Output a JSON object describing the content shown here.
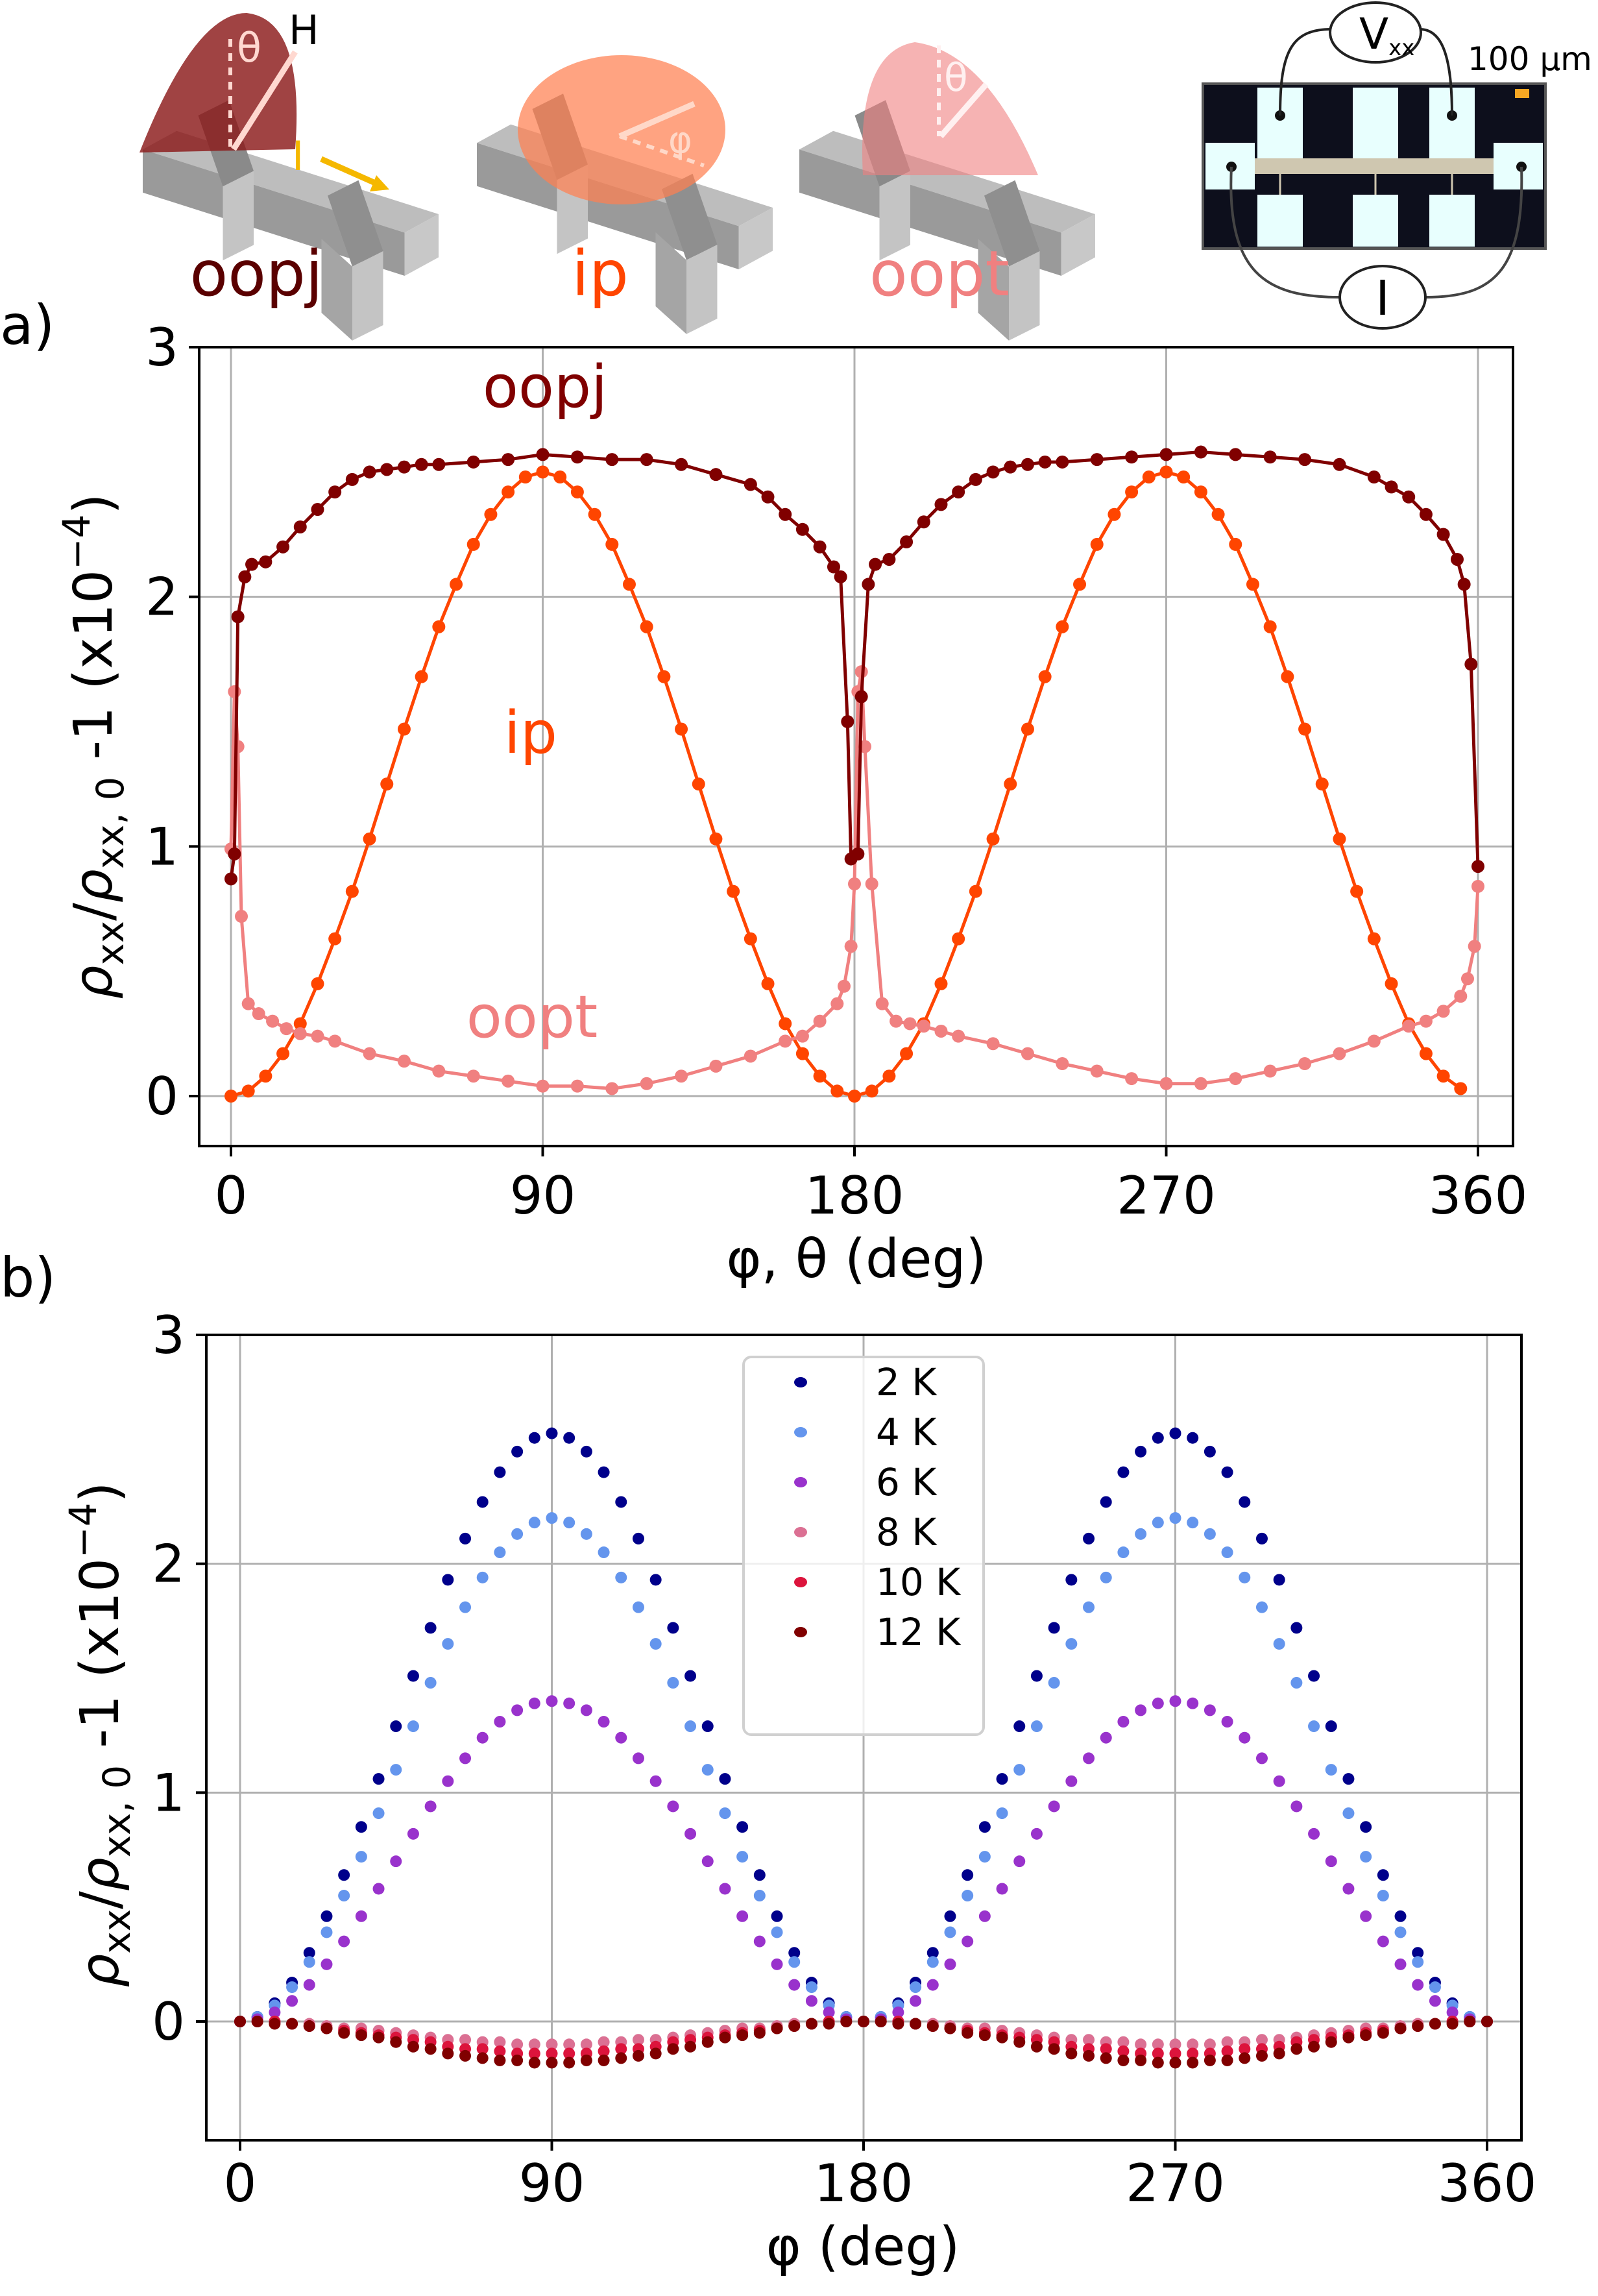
{
  "illustration": {
    "geometry_labels": [
      "oopj",
      "ip",
      "oopt"
    ],
    "geometry_colors": [
      "#5a0000",
      "#ff4500",
      "#f08080"
    ],
    "field_label": "H",
    "theta_label": "θ",
    "phi_label": "φ",
    "current_label": "I",
    "voltmeter_label": "V",
    "voltmeter_sub": "xx",
    "scale_bar": "100 µm",
    "ammeter_label": "I"
  },
  "panel_labels": {
    "a": "a)",
    "b": "b)"
  },
  "ylabel_parts": {
    "rho": "ρ",
    "sub1": "xx",
    "slash": "/",
    "rho2": "ρ",
    "sub2": "xx, 0",
    "tail": " -1 (x10",
    "sup": "−4",
    "close": ")"
  },
  "chart_data": [
    {
      "type": "line",
      "panel": "a",
      "xlabel": "φ, θ (deg)",
      "ylabel": "ρxx/ρxx,0 -1 (x10^-4)",
      "xlim": [
        -8,
        368
      ],
      "ylim": [
        -0.2,
        3
      ],
      "xticks": [
        "0",
        "90",
        "180",
        "270",
        "360"
      ],
      "xtick_values": [
        0,
        90,
        180,
        270,
        360
      ],
      "yticks": [
        "0",
        "1",
        "2",
        "3"
      ],
      "ytick_values": [
        0,
        1,
        2,
        3
      ],
      "grid": true,
      "annotations": [
        "oopj",
        "ip",
        "oopt"
      ],
      "series": [
        {
          "name": "ip",
          "color": "#ff4500",
          "x": [
            0,
            5,
            10,
            15,
            20,
            25,
            30,
            35,
            40,
            45,
            50,
            55,
            60,
            65,
            70,
            75,
            80,
            85,
            90,
            95,
            100,
            105,
            110,
            115,
            120,
            125,
            130,
            135,
            140,
            145,
            150,
            155,
            160,
            165,
            170,
            175,
            180,
            185,
            190,
            195,
            200,
            205,
            210,
            215,
            220,
            225,
            230,
            235,
            240,
            245,
            250,
            255,
            260,
            265,
            270,
            275,
            280,
            285,
            290,
            295,
            300,
            305,
            310,
            315,
            320,
            325,
            330,
            335,
            340,
            345,
            350,
            355
          ],
          "y": [
            0,
            0.02,
            0.08,
            0.17,
            0.29,
            0.45,
            0.63,
            0.82,
            1.03,
            1.25,
            1.47,
            1.68,
            1.88,
            2.05,
            2.21,
            2.33,
            2.42,
            2.48,
            2.5,
            2.48,
            2.42,
            2.33,
            2.21,
            2.05,
            1.88,
            1.68,
            1.47,
            1.25,
            1.03,
            0.82,
            0.63,
            0.45,
            0.29,
            0.17,
            0.08,
            0.02,
            0,
            0.02,
            0.08,
            0.17,
            0.29,
            0.45,
            0.63,
            0.82,
            1.03,
            1.25,
            1.47,
            1.68,
            1.88,
            2.05,
            2.21,
            2.33,
            2.42,
            2.48,
            2.5,
            2.48,
            2.42,
            2.33,
            2.21,
            2.05,
            1.88,
            1.68,
            1.47,
            1.25,
            1.03,
            0.82,
            0.63,
            0.45,
            0.29,
            0.17,
            0.08,
            0.03
          ]
        },
        {
          "name": "oopt",
          "color": "#f08080",
          "x": [
            0,
            1,
            2,
            3,
            5,
            8,
            12,
            16,
            20,
            25,
            30,
            40,
            50,
            60,
            70,
            80,
            90,
            100,
            110,
            120,
            130,
            140,
            150,
            160,
            165,
            170,
            175,
            177,
            179,
            180,
            181,
            182,
            183,
            185,
            188,
            192,
            196,
            200,
            205,
            210,
            220,
            230,
            240,
            250,
            260,
            270,
            280,
            290,
            300,
            310,
            320,
            330,
            340,
            345,
            350,
            355,
            357,
            359,
            360
          ],
          "y": [
            0.99,
            1.62,
            1.4,
            0.72,
            0.37,
            0.33,
            0.3,
            0.27,
            0.25,
            0.24,
            0.22,
            0.17,
            0.14,
            0.1,
            0.08,
            0.06,
            0.04,
            0.04,
            0.03,
            0.05,
            0.08,
            0.12,
            0.16,
            0.22,
            0.24,
            0.3,
            0.37,
            0.44,
            0.6,
            0.85,
            1.62,
            1.7,
            1.4,
            0.85,
            0.37,
            0.3,
            0.29,
            0.28,
            0.26,
            0.24,
            0.21,
            0.17,
            0.13,
            0.1,
            0.07,
            0.05,
            0.05,
            0.07,
            0.1,
            0.13,
            0.17,
            0.22,
            0.28,
            0.3,
            0.34,
            0.4,
            0.47,
            0.6,
            0.84
          ]
        },
        {
          "name": "oopj",
          "color": "#800000",
          "x": [
            0,
            1,
            2,
            4,
            6,
            10,
            15,
            20,
            25,
            30,
            35,
            40,
            45,
            50,
            55,
            60,
            70,
            80,
            90,
            100,
            110,
            120,
            130,
            140,
            150,
            155,
            160,
            165,
            170,
            174,
            176,
            178,
            179,
            181,
            182,
            184,
            186,
            190,
            195,
            200,
            205,
            210,
            215,
            220,
            225,
            230,
            235,
            240,
            250,
            260,
            270,
            280,
            290,
            300,
            310,
            320,
            330,
            335,
            340,
            345,
            350,
            354,
            356,
            358,
            360
          ],
          "y": [
            0.87,
            0.97,
            1.92,
            2.08,
            2.13,
            2.14,
            2.2,
            2.28,
            2.35,
            2.42,
            2.47,
            2.5,
            2.51,
            2.52,
            2.53,
            2.53,
            2.54,
            2.55,
            2.57,
            2.56,
            2.55,
            2.55,
            2.53,
            2.49,
            2.45,
            2.4,
            2.33,
            2.27,
            2.2,
            2.12,
            2.08,
            1.5,
            0.95,
            0.97,
            1.6,
            2.05,
            2.13,
            2.15,
            2.22,
            2.3,
            2.37,
            2.42,
            2.47,
            2.5,
            2.52,
            2.53,
            2.54,
            2.54,
            2.55,
            2.56,
            2.57,
            2.58,
            2.57,
            2.56,
            2.55,
            2.53,
            2.48,
            2.44,
            2.4,
            2.33,
            2.25,
            2.15,
            2.05,
            1.73,
            0.92
          ]
        }
      ]
    },
    {
      "type": "scatter",
      "panel": "b",
      "xlabel": "φ (deg)",
      "ylabel": "ρxx/ρxx,0 -1 (x10^-4)",
      "xlim": [
        -8,
        368
      ],
      "ylim": [
        -0.52,
        3
      ],
      "xticks": [
        "0",
        "90",
        "180",
        "270",
        "360"
      ],
      "xtick_values": [
        0,
        90,
        180,
        270,
        360
      ],
      "yticks": [
        "0",
        "1",
        "2",
        "3"
      ],
      "ytick_values": [
        0,
        1,
        2,
        3
      ],
      "grid": true,
      "legend_position": "top-center",
      "x": [
        0,
        5,
        10,
        15,
        20,
        25,
        30,
        35,
        40,
        45,
        50,
        55,
        60,
        65,
        70,
        75,
        80,
        85,
        90,
        95,
        100,
        105,
        110,
        115,
        120,
        125,
        130,
        135,
        140,
        145,
        150,
        155,
        160,
        165,
        170,
        175,
        180,
        185,
        190,
        195,
        200,
        205,
        210,
        215,
        220,
        225,
        230,
        235,
        240,
        245,
        250,
        255,
        260,
        265,
        270,
        275,
        280,
        285,
        290,
        295,
        300,
        305,
        310,
        315,
        320,
        325,
        330,
        335,
        340,
        345,
        350,
        355,
        360
      ],
      "series": [
        {
          "name": "2 K",
          "color": "#00008b",
          "y": [
            0,
            0.02,
            0.08,
            0.17,
            0.3,
            0.46,
            0.64,
            0.85,
            1.06,
            1.29,
            1.51,
            1.72,
            1.93,
            2.11,
            2.27,
            2.4,
            2.49,
            2.55,
            2.57,
            2.55,
            2.49,
            2.4,
            2.27,
            2.11,
            1.93,
            1.72,
            1.51,
            1.29,
            1.06,
            0.85,
            0.64,
            0.46,
            0.3,
            0.17,
            0.08,
            0.02,
            0,
            0.02,
            0.08,
            0.17,
            0.3,
            0.46,
            0.64,
            0.85,
            1.06,
            1.29,
            1.51,
            1.72,
            1.93,
            2.11,
            2.27,
            2.4,
            2.49,
            2.55,
            2.57,
            2.55,
            2.49,
            2.4,
            2.27,
            2.11,
            1.93,
            1.72,
            1.51,
            1.29,
            1.06,
            0.85,
            0.64,
            0.46,
            0.3,
            0.17,
            0.08,
            0.02,
            0
          ]
        },
        {
          "name": "4 K",
          "color": "#6495ed",
          "y": [
            0,
            0.02,
            0.07,
            0.15,
            0.26,
            0.39,
            0.55,
            0.72,
            0.91,
            1.1,
            1.29,
            1.48,
            1.65,
            1.81,
            1.94,
            2.05,
            2.13,
            2.18,
            2.2,
            2.18,
            2.13,
            2.05,
            1.94,
            1.81,
            1.65,
            1.48,
            1.29,
            1.1,
            0.91,
            0.72,
            0.55,
            0.39,
            0.26,
            0.15,
            0.07,
            0.02,
            0,
            0.02,
            0.07,
            0.15,
            0.26,
            0.39,
            0.55,
            0.72,
            0.91,
            1.1,
            1.29,
            1.48,
            1.65,
            1.81,
            1.94,
            2.05,
            2.13,
            2.18,
            2.2,
            2.18,
            2.13,
            2.05,
            1.94,
            1.81,
            1.65,
            1.48,
            1.29,
            1.1,
            0.91,
            0.72,
            0.55,
            0.39,
            0.26,
            0.15,
            0.07,
            0.02,
            0
          ]
        },
        {
          "name": "6 K",
          "color": "#9932cc",
          "y": [
            0,
            0.01,
            0.04,
            0.09,
            0.16,
            0.25,
            0.35,
            0.46,
            0.58,
            0.7,
            0.82,
            0.94,
            1.05,
            1.15,
            1.24,
            1.31,
            1.36,
            1.39,
            1.4,
            1.39,
            1.36,
            1.31,
            1.24,
            1.15,
            1.05,
            0.94,
            0.82,
            0.7,
            0.58,
            0.46,
            0.35,
            0.25,
            0.16,
            0.09,
            0.04,
            0.01,
            0,
            0.01,
            0.04,
            0.09,
            0.16,
            0.25,
            0.35,
            0.46,
            0.58,
            0.7,
            0.82,
            0.94,
            1.05,
            1.15,
            1.24,
            1.31,
            1.36,
            1.39,
            1.4,
            1.39,
            1.36,
            1.31,
            1.24,
            1.15,
            1.05,
            0.94,
            0.82,
            0.7,
            0.58,
            0.46,
            0.35,
            0.25,
            0.16,
            0.09,
            0.04,
            0.01,
            0
          ]
        },
        {
          "name": "8 K",
          "color": "#db7093",
          "y": [
            0,
            0,
            0,
            -0.01,
            -0.01,
            -0.02,
            -0.03,
            -0.03,
            -0.04,
            -0.05,
            -0.06,
            -0.07,
            -0.08,
            -0.08,
            -0.09,
            -0.09,
            -0.1,
            -0.1,
            -0.1,
            -0.1,
            -0.1,
            -0.09,
            -0.09,
            -0.08,
            -0.08,
            -0.07,
            -0.06,
            -0.05,
            -0.04,
            -0.03,
            -0.03,
            -0.02,
            -0.01,
            -0.01,
            0,
            0,
            0,
            0,
            0,
            -0.01,
            -0.01,
            -0.02,
            -0.03,
            -0.03,
            -0.04,
            -0.05,
            -0.06,
            -0.07,
            -0.08,
            -0.08,
            -0.09,
            -0.09,
            -0.1,
            -0.1,
            -0.1,
            -0.1,
            -0.1,
            -0.09,
            -0.09,
            -0.08,
            -0.08,
            -0.07,
            -0.06,
            -0.05,
            -0.04,
            -0.03,
            -0.03,
            -0.02,
            -0.01,
            -0.01,
            0,
            0,
            0
          ]
        },
        {
          "name": "10 K",
          "color": "#dc143c",
          "y": [
            0,
            0,
            0,
            -0.01,
            -0.02,
            -0.03,
            -0.04,
            -0.05,
            -0.06,
            -0.07,
            -0.08,
            -0.09,
            -0.11,
            -0.12,
            -0.12,
            -0.13,
            -0.14,
            -0.14,
            -0.14,
            -0.14,
            -0.14,
            -0.13,
            -0.12,
            -0.12,
            -0.11,
            -0.09,
            -0.08,
            -0.07,
            -0.06,
            -0.05,
            -0.04,
            -0.03,
            -0.02,
            -0.01,
            0,
            0,
            0,
            0,
            0,
            -0.01,
            -0.02,
            -0.03,
            -0.04,
            -0.05,
            -0.06,
            -0.07,
            -0.08,
            -0.09,
            -0.11,
            -0.12,
            -0.12,
            -0.13,
            -0.14,
            -0.14,
            -0.14,
            -0.14,
            -0.14,
            -0.13,
            -0.12,
            -0.12,
            -0.11,
            -0.09,
            -0.08,
            -0.07,
            -0.06,
            -0.05,
            -0.04,
            -0.03,
            -0.02,
            -0.01,
            0,
            0,
            0
          ]
        },
        {
          "name": "12 K",
          "color": "#800000",
          "y": [
            0,
            0,
            -0.01,
            -0.01,
            -0.02,
            -0.03,
            -0.05,
            -0.06,
            -0.07,
            -0.09,
            -0.11,
            -0.12,
            -0.14,
            -0.15,
            -0.16,
            -0.17,
            -0.17,
            -0.18,
            -0.18,
            -0.18,
            -0.17,
            -0.17,
            -0.16,
            -0.15,
            -0.14,
            -0.12,
            -0.11,
            -0.09,
            -0.07,
            -0.06,
            -0.05,
            -0.03,
            -0.02,
            -0.01,
            -0.01,
            0,
            0,
            0,
            -0.01,
            -0.01,
            -0.02,
            -0.03,
            -0.05,
            -0.06,
            -0.07,
            -0.09,
            -0.11,
            -0.12,
            -0.14,
            -0.15,
            -0.16,
            -0.17,
            -0.17,
            -0.18,
            -0.18,
            -0.18,
            -0.17,
            -0.17,
            -0.16,
            -0.15,
            -0.14,
            -0.12,
            -0.11,
            -0.09,
            -0.07,
            -0.06,
            -0.05,
            -0.03,
            -0.02,
            -0.01,
            -0.01,
            0,
            0
          ]
        }
      ]
    }
  ]
}
